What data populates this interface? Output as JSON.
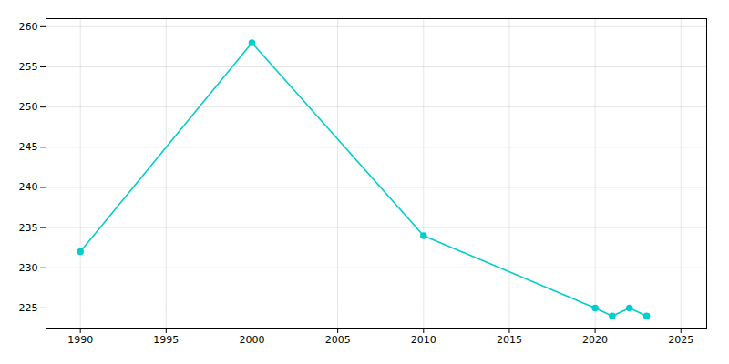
{
  "chart_data": {
    "type": "line",
    "x": [
      1990,
      2000,
      2010,
      2020,
      2021,
      2022,
      2023
    ],
    "values": [
      232,
      258,
      234,
      225,
      224,
      225,
      224
    ],
    "color": "#00CDCD",
    "marker": "circle",
    "xlim": [
      1988,
      2026.5
    ],
    "ylim": [
      222.5,
      261
    ],
    "xticks": [
      1990,
      1995,
      2000,
      2005,
      2010,
      2015,
      2020,
      2025
    ],
    "yticks": [
      225,
      230,
      235,
      240,
      245,
      250,
      255,
      260
    ],
    "grid": true
  }
}
